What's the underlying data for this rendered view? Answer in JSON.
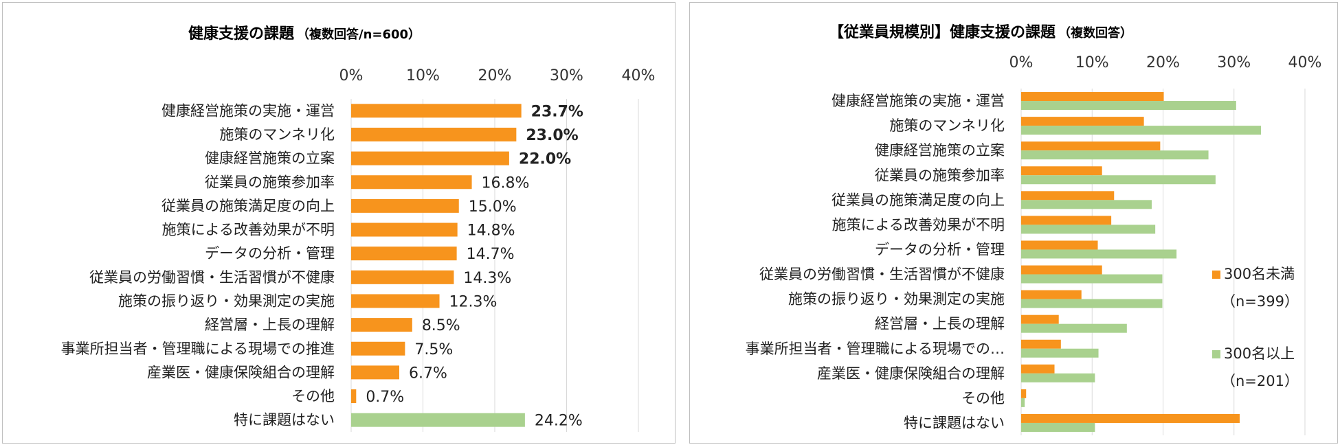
{
  "chart_data": [
    {
      "type": "bar",
      "orientation": "horizontal",
      "title": "健康支援の課題",
      "subtitle": "（複数回答/n=600）",
      "xlim": [
        0,
        40
      ],
      "ticks": [
        "0%",
        "10%",
        "20%",
        "30%",
        "40%"
      ],
      "grid": true,
      "categories": [
        "健康経営施策の実施・運営",
        "施策のマンネリ化",
        "健康経営施策の立案",
        "従業員の施策参加率",
        "従業員の施策満足度の向上",
        "施策による改善効果が不明",
        "データの分析・管理",
        "従業員の労働習慣・生活習慣が不健康",
        "施策の振り返り・効果測定の実施",
        "経営層・上長の理解",
        "事業所担当者・管理職による現場での推進",
        "産業医・健康保険組合の理解",
        "その他",
        "特に課題はない"
      ],
      "values": [
        23.7,
        23.0,
        22.0,
        16.8,
        15.0,
        14.8,
        14.7,
        14.3,
        12.3,
        8.5,
        7.5,
        6.7,
        0.7,
        24.2
      ],
      "value_labels": [
        "23.7%",
        "23.0%",
        "22.0%",
        "16.8%",
        "15.0%",
        "14.8%",
        "14.7%",
        "14.3%",
        "12.3%",
        "8.5%",
        "7.5%",
        "6.7%",
        "0.7%",
        "24.2%"
      ],
      "bold_labels": [
        true,
        true,
        true,
        false,
        false,
        false,
        false,
        false,
        false,
        false,
        false,
        false,
        false,
        false
      ],
      "bar_colors": [
        "#f7941d",
        "#f7941d",
        "#f7941d",
        "#f7941d",
        "#f7941d",
        "#f7941d",
        "#f7941d",
        "#f7941d",
        "#f7941d",
        "#f7941d",
        "#f7941d",
        "#f7941d",
        "#f7941d",
        "#a9d18e"
      ]
    },
    {
      "type": "bar",
      "orientation": "horizontal",
      "title": "【従業員規模別】健康支援の課題",
      "subtitle": "（複数回答）",
      "xlim": [
        0,
        40
      ],
      "ticks": [
        "0%",
        "10%",
        "20%",
        "30%",
        "40%"
      ],
      "grid": true,
      "categories": [
        "健康経営施策の実施・運営",
        "施策のマンネリ化",
        "健康経営施策の立案",
        "従業員の施策参加率",
        "従業員の施策満足度の向上",
        "施策による改善効果が不明",
        "データの分析・管理",
        "従業員の労働習慣・生活習慣が不健康",
        "施策の振り返り・効果測定の実施",
        "経営層・上長の理解",
        "事業所担当者・管理職による現場での…",
        "産業医・健康保険組合の理解",
        "その他",
        "特に課題はない"
      ],
      "series": [
        {
          "name": "300名未満",
          "legend_sub": "（n=399）",
          "color": "#f7941d",
          "values": [
            20.1,
            17.3,
            19.6,
            11.4,
            13.1,
            12.7,
            10.8,
            11.4,
            8.5,
            5.3,
            5.6,
            4.7,
            0.7,
            30.8
          ]
        },
        {
          "name": "300名以上",
          "legend_sub": "（n=201）",
          "color": "#a9d18e",
          "values": [
            30.3,
            33.8,
            26.4,
            27.4,
            18.4,
            18.9,
            21.9,
            19.9,
            19.9,
            14.9,
            10.9,
            10.4,
            0.5,
            10.4
          ]
        }
      ],
      "legend_position": "right"
    }
  ]
}
